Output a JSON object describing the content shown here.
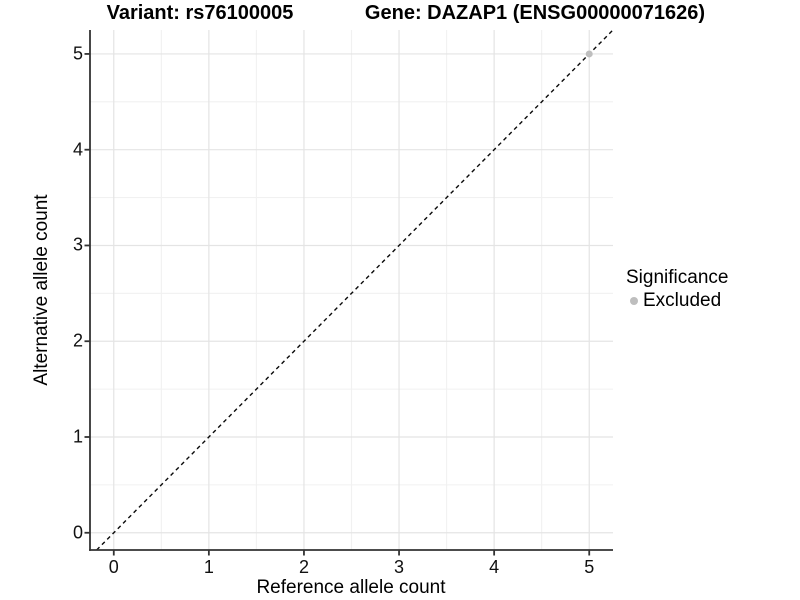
{
  "header": {
    "variant_title": "Variant: rs76100005",
    "gene_title": "Gene: DAZAP1 (ENSG00000071626)"
  },
  "chart_data": {
    "type": "scatter",
    "xlabel": "Reference allele count",
    "ylabel": "Alternative allele count",
    "xlim": [
      -0.25,
      5.25
    ],
    "ylim": [
      -0.18,
      5.25
    ],
    "x_ticks": [
      0,
      1,
      2,
      3,
      4,
      5
    ],
    "y_ticks": [
      0,
      1,
      2,
      3,
      4,
      5
    ],
    "x_minor_ticks": [
      0.5,
      1.5,
      2.5,
      3.5,
      4.5
    ],
    "y_minor_ticks": [
      0.5,
      1.5,
      2.5,
      3.5,
      4.5
    ],
    "grid": "major and minor gridlines, white panel background",
    "reference_line": {
      "equation": "y = x",
      "style": "dashed",
      "from": [
        -0.18,
        -0.18
      ],
      "to": [
        5.25,
        5.25
      ]
    },
    "series": [
      {
        "name": "Excluded",
        "color": "#bebebe",
        "point_radius": 3.5,
        "points": [
          [
            5,
            5
          ]
        ]
      }
    ],
    "legend": {
      "title": "Significance",
      "position": "right",
      "entries": [
        {
          "label": "Excluded",
          "color": "#bebebe"
        }
      ]
    }
  },
  "colors": {
    "background": "#ffffff",
    "text": "#000000",
    "axis": "#333333",
    "grid_major": "#e4e4e4",
    "grid_minor": "#f1f1f1",
    "reference_line": "#0a0a0a",
    "excluded": "#bebebe"
  }
}
